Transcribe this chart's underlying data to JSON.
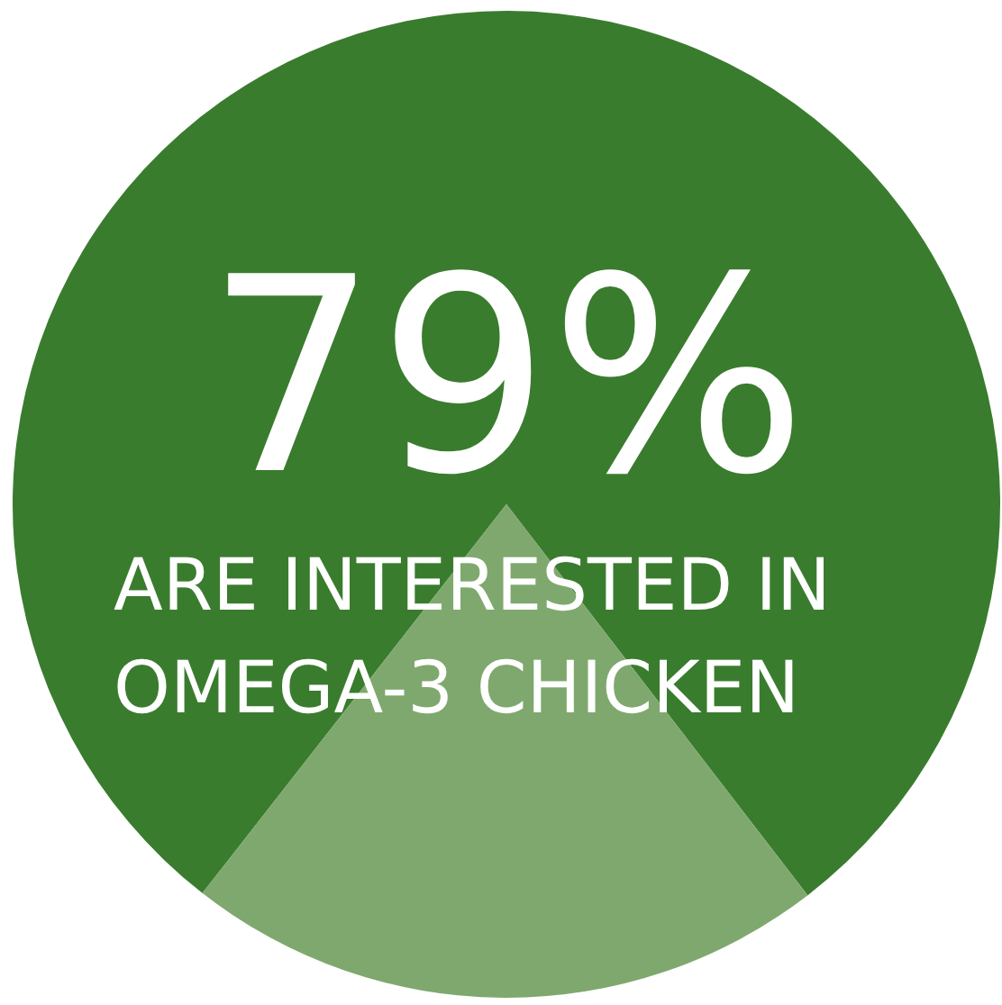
{
  "chart_data": {
    "type": "pie",
    "categories": [
      "ARE INTERESTED IN OMEGA-3 CHICKEN",
      null
    ],
    "values": [
      79,
      21
    ],
    "colors": [
      "#3a7c2e",
      "#7fa86e"
    ],
    "value_labels": [
      "79%",
      null
    ]
  }
}
